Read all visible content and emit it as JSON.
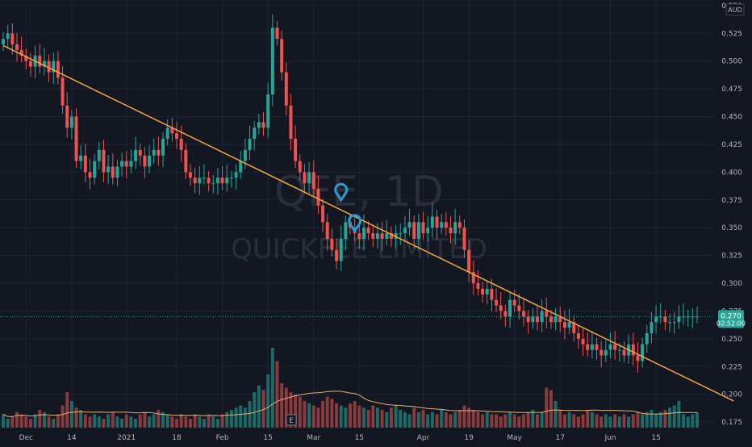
{
  "watermark": {
    "symbol": "QFE, 1D",
    "name": "QUICKFEE LIMITED"
  },
  "currency_label": "AUD",
  "price_tag": {
    "value": "0.270",
    "countdown": "02:52:00"
  },
  "colors": {
    "background": "#131722",
    "grid": "#1f2433",
    "up": "#26a69a",
    "down": "#ef5350",
    "up_volume": "#1d6b67",
    "down_volume": "#8b3a3d",
    "trendline": "#f5a742",
    "volume_ma": "#e4b07a",
    "marker": "#2a9bd8",
    "axis_text": "#b2b5be"
  },
  "markers": [
    {
      "date_index": 74,
      "value": 0.375
    },
    {
      "date_index": 77,
      "value": 0.347
    }
  ],
  "trendline": {
    "start": {
      "date_index": 0,
      "value": 0.514
    },
    "end": {
      "date_index": 152,
      "value": 0.21
    }
  },
  "chart_data": {
    "type": "candlestick",
    "ylim": [
      0.17,
      0.555
    ],
    "price_ticks": [
      0.175,
      0.2,
      0.225,
      0.25,
      0.275,
      0.3,
      0.325,
      0.35,
      0.375,
      0.4,
      0.425,
      0.45,
      0.475,
      0.5,
      0.525,
      0.55
    ],
    "price_tick_labels": [
      "0.175",
      "0.200",
      "0.225",
      "0.250",
      "0.275",
      "0.300",
      "0.325",
      "0.350",
      "0.375",
      "0.400",
      "0.425",
      "0.450",
      "0.475",
      "0.500",
      "0.525",
      "0.550"
    ],
    "x_ticks": [
      {
        "label": "Dec",
        "date_index": 5
      },
      {
        "label": "14",
        "date_index": 15
      },
      {
        "label": "2021",
        "date_index": 27
      },
      {
        "label": "18",
        "date_index": 38
      },
      {
        "label": "Feb",
        "date_index": 48
      },
      {
        "label": "15",
        "date_index": 58
      },
      {
        "label": "Mar",
        "date_index": 68
      },
      {
        "label": "15",
        "date_index": 78
      },
      {
        "label": "Apr",
        "date_index": 92
      },
      {
        "label": "19",
        "date_index": 102
      },
      {
        "label": "May",
        "date_index": 112
      },
      {
        "label": "17",
        "date_index": 122
      },
      {
        "label": "Jun",
        "date_index": 133
      },
      {
        "label": "15",
        "date_index": 143
      }
    ],
    "close": [
      0.52,
      0.525,
      0.515,
      0.51,
      0.505,
      0.5,
      0.495,
      0.505,
      0.495,
      0.5,
      0.49,
      0.5,
      0.485,
      0.46,
      0.44,
      0.45,
      0.41,
      0.415,
      0.4,
      0.395,
      0.41,
      0.42,
      0.4,
      0.405,
      0.395,
      0.405,
      0.41,
      0.405,
      0.41,
      0.42,
      0.415,
      0.405,
      0.415,
      0.42,
      0.415,
      0.43,
      0.44,
      0.435,
      0.43,
      0.42,
      0.4,
      0.395,
      0.39,
      0.395,
      0.395,
      0.39,
      0.39,
      0.395,
      0.39,
      0.395,
      0.395,
      0.4,
      0.41,
      0.42,
      0.43,
      0.44,
      0.445,
      0.44,
      0.47,
      0.53,
      0.52,
      0.49,
      0.46,
      0.43,
      0.41,
      0.4,
      0.39,
      0.4,
      0.385,
      0.37,
      0.355,
      0.34,
      0.33,
      0.32,
      0.34,
      0.355,
      0.35,
      0.345,
      0.34,
      0.35,
      0.345,
      0.34,
      0.345,
      0.34,
      0.345,
      0.34,
      0.345,
      0.345,
      0.35,
      0.355,
      0.34,
      0.355,
      0.345,
      0.35,
      0.36,
      0.35,
      0.355,
      0.35,
      0.345,
      0.355,
      0.35,
      0.33,
      0.31,
      0.3,
      0.295,
      0.29,
      0.295,
      0.285,
      0.28,
      0.275,
      0.27,
      0.285,
      0.28,
      0.275,
      0.27,
      0.265,
      0.27,
      0.265,
      0.275,
      0.27,
      0.265,
      0.27,
      0.265,
      0.26,
      0.265,
      0.255,
      0.25,
      0.245,
      0.24,
      0.245,
      0.24,
      0.235,
      0.24,
      0.245,
      0.24,
      0.24,
      0.235,
      0.245,
      0.235,
      0.23,
      0.245,
      0.255,
      0.265,
      0.27,
      0.27,
      0.265,
      0.265,
      0.265,
      0.27,
      0.27,
      0.27,
      0.27,
      0.27
    ],
    "volume": [
      0.3,
      0.2,
      0.25,
      0.35,
      0.3,
      0.25,
      0.2,
      0.3,
      0.4,
      0.35,
      0.25,
      0.2,
      0.3,
      0.5,
      0.8,
      0.6,
      0.45,
      0.4,
      0.3,
      0.25,
      0.3,
      0.25,
      0.2,
      0.3,
      0.35,
      0.25,
      0.2,
      0.3,
      0.25,
      0.2,
      0.3,
      0.35,
      0.25,
      0.3,
      0.4,
      0.35,
      0.3,
      0.25,
      0.2,
      0.3,
      0.25,
      0.2,
      0.3,
      0.25,
      0.2,
      0.3,
      0.25,
      0.2,
      0.3,
      0.35,
      0.4,
      0.45,
      0.5,
      0.45,
      0.6,
      0.8,
      0.95,
      0.85,
      1.2,
      1.8,
      1.5,
      1.0,
      0.9,
      0.8,
      0.75,
      0.7,
      0.6,
      0.55,
      0.5,
      0.45,
      0.6,
      0.7,
      0.65,
      0.55,
      0.5,
      0.45,
      0.55,
      0.6,
      0.5,
      0.45,
      0.4,
      0.5,
      0.45,
      0.4,
      0.35,
      0.45,
      0.5,
      0.4,
      0.35,
      0.3,
      0.45,
      0.35,
      0.4,
      0.3,
      0.35,
      0.3,
      0.4,
      0.35,
      0.3,
      0.35,
      0.4,
      0.5,
      0.45,
      0.4,
      0.35,
      0.3,
      0.35,
      0.3,
      0.3,
      0.25,
      0.3,
      0.35,
      0.3,
      0.25,
      0.3,
      0.35,
      0.4,
      0.3,
      0.35,
      0.9,
      0.85,
      0.6,
      0.4,
      0.3,
      0.35,
      0.3,
      0.25,
      0.3,
      0.4,
      0.35,
      0.3,
      0.25,
      0.3,
      0.25,
      0.3,
      0.25,
      0.3,
      0.25,
      0.3,
      0.35,
      0.3,
      0.35,
      0.4,
      0.3,
      0.35,
      0.4,
      0.45,
      0.5,
      0.6,
      0.3,
      0.25,
      0.3,
      0.35
    ],
    "volume_ylim": [
      0,
      2.0
    ]
  }
}
